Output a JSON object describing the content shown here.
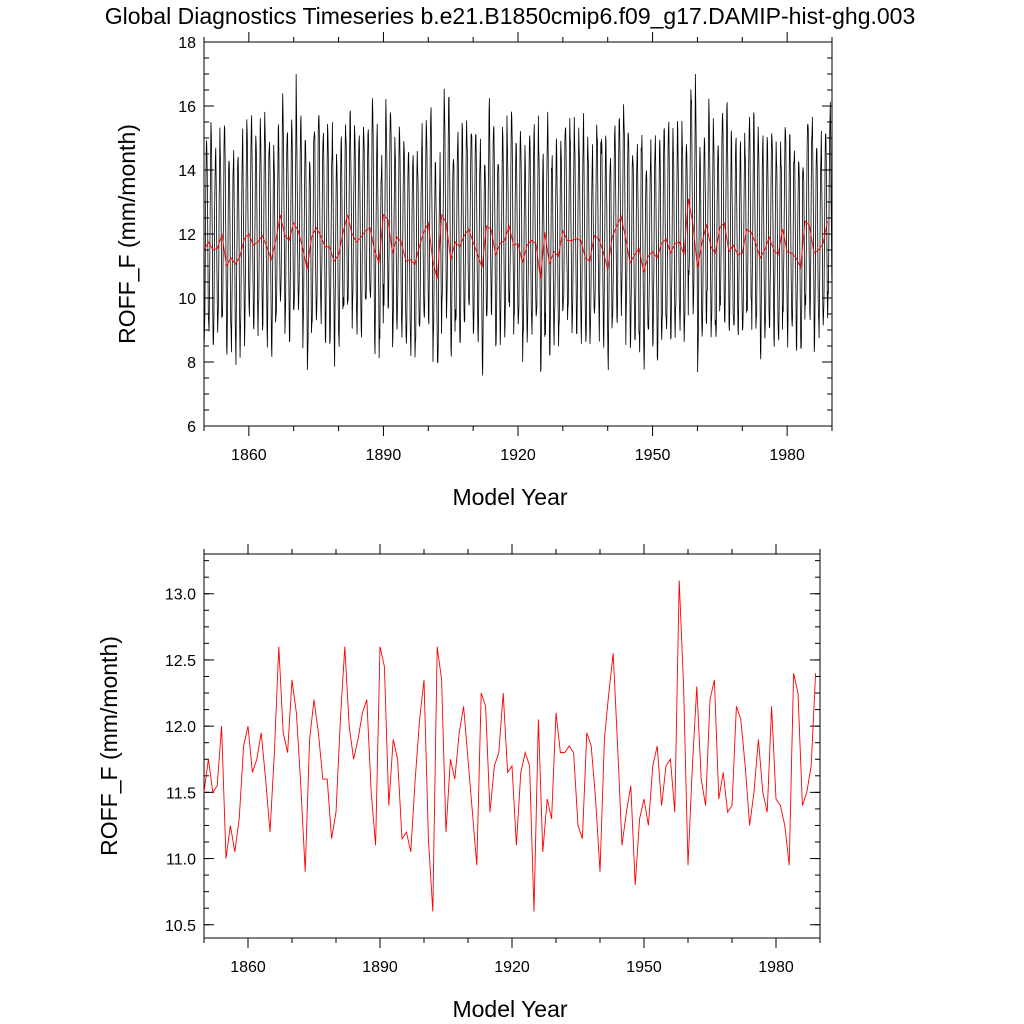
{
  "figure": {
    "title": "Global Diagnostics Timeseries b.e21.B1850cmip6.f09_g17.DAMIP-hist-ghg.003"
  },
  "colors": {
    "monthly": "#000000",
    "annual": "#ff0000"
  },
  "chart_data": [
    {
      "type": "line",
      "xlabel": "Model Year",
      "ylabel": "ROFF_F (mm/month)",
      "xlim": [
        1850,
        1990
      ],
      "ylim": [
        6,
        18
      ],
      "xticks": [
        1860,
        1890,
        1920,
        1950,
        1980
      ],
      "yticks": [
        6,
        8,
        10,
        12,
        14,
        16,
        18
      ],
      "ytick_labels": [
        "6",
        "8",
        "10",
        "12",
        "14",
        "16",
        "18"
      ],
      "series": [
        {
          "resolution": "monthly",
          "color": "#000000",
          "x_start": 1850,
          "period_years": 1,
          "seasonal_min": 9.0,
          "seasonal_max": 15.2,
          "observed_peak": 17.0,
          "observed_min": 8.0
        },
        {
          "resolution": "annual",
          "color": "#ff0000",
          "ref": "annual"
        }
      ]
    },
    {
      "type": "line",
      "xlabel": "Model Year",
      "ylabel": "ROFF_F (mm/month)",
      "xlim": [
        1850,
        1990
      ],
      "ylim": [
        10.4,
        13.3
      ],
      "xticks": [
        1860,
        1890,
        1920,
        1950,
        1980
      ],
      "yticks": [
        10.5,
        11.0,
        11.5,
        12.0,
        12.5,
        13.0
      ],
      "ytick_labels": [
        "10.5",
        "11.0",
        "11.5",
        "12.0",
        "12.5",
        "13.0"
      ],
      "series": [
        {
          "resolution": "annual",
          "color": "#ff0000",
          "ref": "annual"
        }
      ]
    }
  ],
  "annual": {
    "x_start": 1850,
    "values": [
      11.5,
      11.75,
      11.5,
      11.55,
      12.0,
      11.0,
      11.25,
      11.05,
      11.3,
      11.85,
      12.0,
      11.65,
      11.75,
      11.95,
      11.6,
      11.2,
      11.8,
      12.6,
      11.95,
      11.8,
      12.35,
      12.1,
      11.55,
      10.9,
      11.9,
      12.2,
      11.95,
      11.6,
      11.6,
      11.15,
      11.35,
      12.05,
      12.6,
      12.0,
      11.75,
      11.9,
      12.1,
      12.2,
      11.5,
      11.1,
      12.6,
      12.45,
      11.4,
      11.9,
      11.75,
      11.15,
      11.2,
      11.05,
      11.6,
      12.05,
      12.35,
      11.15,
      10.6,
      12.6,
      12.35,
      11.2,
      11.75,
      11.6,
      11.95,
      12.15,
      11.75,
      11.35,
      10.95,
      12.25,
      12.15,
      11.35,
      11.7,
      11.8,
      12.25,
      11.65,
      11.7,
      11.1,
      11.65,
      11.8,
      11.7,
      10.6,
      12.05,
      11.05,
      11.45,
      11.3,
      12.1,
      11.8,
      11.8,
      11.85,
      11.8,
      11.25,
      11.15,
      11.95,
      11.85,
      11.45,
      10.9,
      11.9,
      12.25,
      12.55,
      11.85,
      11.1,
      11.35,
      11.55,
      10.8,
      11.3,
      11.45,
      11.25,
      11.7,
      11.85,
      11.4,
      11.7,
      11.75,
      11.35,
      13.1,
      12.3,
      10.95,
      11.7,
      12.3,
      11.6,
      11.4,
      12.2,
      12.35,
      11.45,
      11.65,
      11.35,
      11.4,
      12.15,
      12.05,
      11.7,
      11.25,
      11.5,
      11.9,
      11.5,
      11.35,
      12.15,
      11.45,
      11.4,
      11.25,
      10.95,
      12.4,
      12.25,
      11.4,
      11.5,
      11.7,
      12.4
    ]
  }
}
